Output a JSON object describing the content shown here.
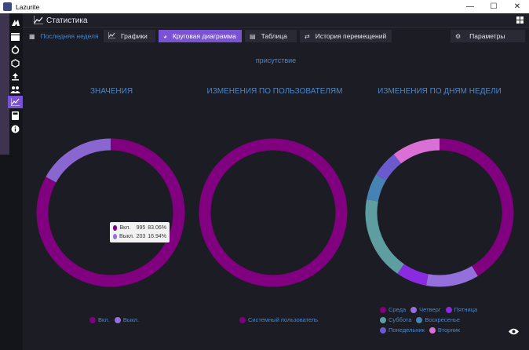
{
  "window": {
    "title": "Lazurite",
    "controls": [
      "—",
      "☐",
      "✕"
    ]
  },
  "header": {
    "title": "Статистика"
  },
  "toolbar": {
    "period": "Последняя неделя",
    "graphs": "Графики",
    "pie": "Круговая диаграмма",
    "table": "Таблица",
    "history": "История перемещений",
    "params": "Параметры"
  },
  "subtitle": "присутствие",
  "sections": {
    "values": "ЗНАЧЕНИЯ",
    "by_user": "ИЗМЕНЕНИЯ ПО ПОЛЬЗОВАТЕЛЯМ",
    "by_weekday": "ИЗМЕНЕНИЯ ПО ДНЯМ НЕДЕЛИ"
  },
  "tooltip": {
    "rows": [
      {
        "label": "Вкл.",
        "value": "995",
        "percent": "83.06%",
        "color": "#800080"
      },
      {
        "label": "Выкл.",
        "value": "203",
        "percent": "16.94%",
        "color": "#9370db"
      }
    ]
  },
  "colors": {
    "accent": "#7a52d4",
    "title_blue": "#4b86c8"
  },
  "chart_data": [
    {
      "type": "pie",
      "title": "ЗНАЧЕНИЯ",
      "categories": [
        "Вкл.",
        "Выкл."
      ],
      "values": [
        995,
        203
      ],
      "colors": [
        "#800080",
        "#8a66d0"
      ],
      "start_angle_deg": 0
    },
    {
      "type": "pie",
      "title": "ИЗМЕНЕНИЯ ПО ПОЛЬЗОВАТЕЛЯМ",
      "categories": [
        "Системный пользователь"
      ],
      "values": [
        100
      ],
      "colors": [
        "#800080"
      ],
      "start_angle_deg": 0
    },
    {
      "type": "pie",
      "title": "ИЗМЕНЕНИЯ ПО ДНЯМ НЕДЕЛИ",
      "categories": [
        "Среда",
        "Четверг",
        "Пятница",
        "Суббота",
        "Воскресенье",
        "Понедельник",
        "Вторник"
      ],
      "values": [
        43,
        12,
        7,
        19,
        6,
        6,
        11
      ],
      "colors": [
        "#800080",
        "#9370db",
        "#8a2be2",
        "#5f9ea0",
        "#4682b4",
        "#6a5acd",
        "#da70d6"
      ],
      "start_angle_deg": 0
    }
  ]
}
